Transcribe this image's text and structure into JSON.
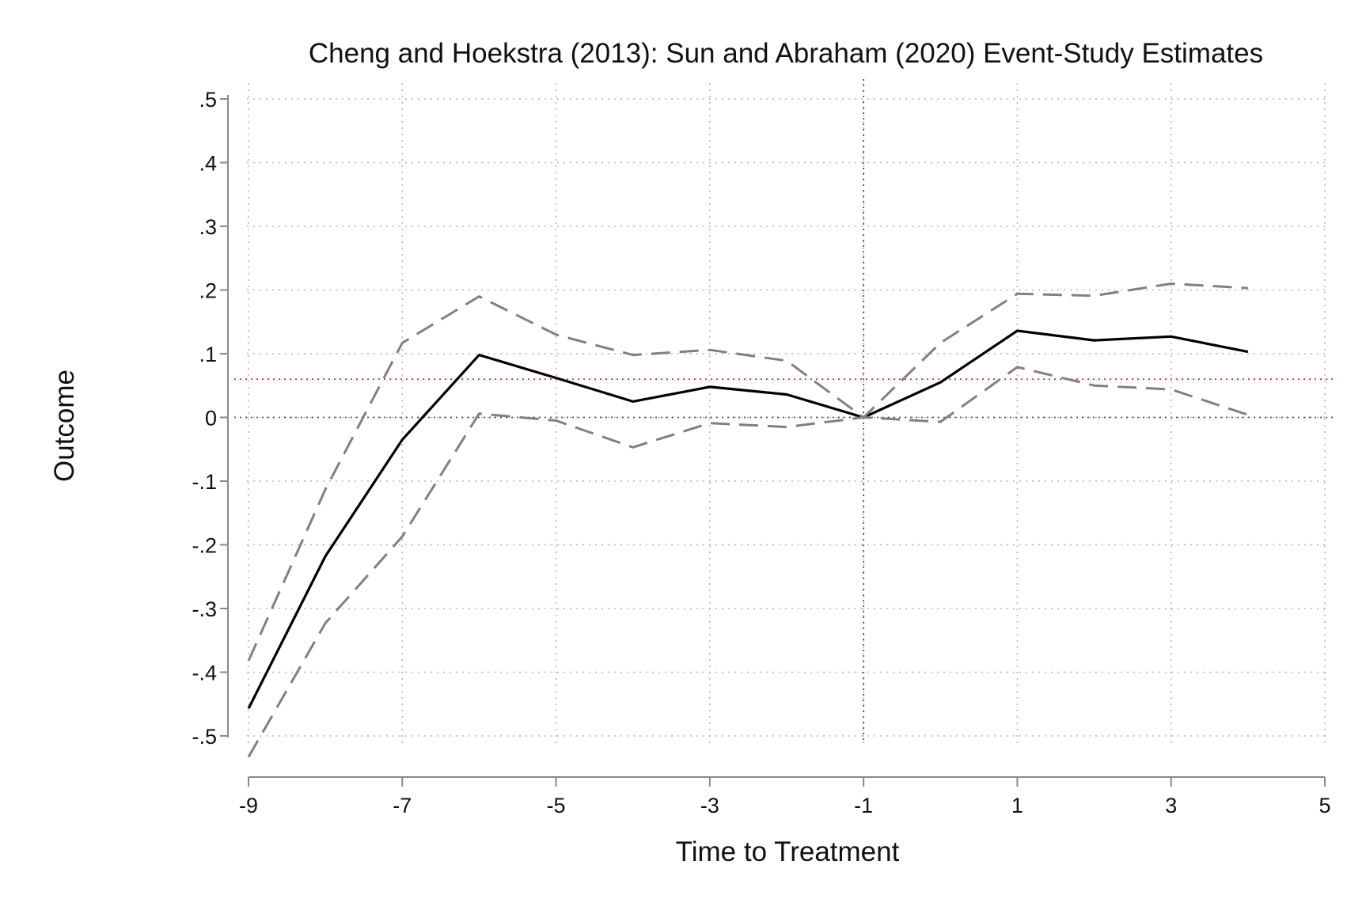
{
  "chart_data": {
    "type": "line",
    "title": "Cheng and Hoekstra (2013): Sun and Abraham (2020) Event-Study Estimates",
    "xlabel": "Time to Treatment",
    "ylabel": "Outcome",
    "xlim": [
      -9,
      5
    ],
    "ylim": [
      -0.5,
      0.5
    ],
    "xticks": [
      -9,
      -7,
      -5,
      -3,
      -1,
      1,
      3,
      5
    ],
    "xtick_labels": [
      "-9",
      "-7",
      "-5",
      "-3",
      "-1",
      "1",
      "3",
      "5"
    ],
    "yticks": [
      0.5,
      0.4,
      0.3,
      0.2,
      0.1,
      0,
      -0.1,
      -0.2,
      -0.3,
      -0.4,
      -0.5
    ],
    "ytick_labels": [
      ".5",
      ".4",
      ".3",
      ".2",
      ".1",
      "0",
      "-.1",
      "-.2",
      "-.3",
      "-.4",
      "-.5"
    ],
    "grid": true,
    "x": [
      -9,
      -8,
      -7,
      -6,
      -5,
      -4,
      -3,
      -2,
      -1,
      0,
      1,
      2,
      3,
      4
    ],
    "series": [
      {
        "role": "estimate",
        "style": "solid",
        "color": "#000000",
        "values": [
          -0.457,
          -0.218,
          -0.035,
          0.098,
          0.062,
          0.025,
          0.048,
          0.036,
          0.0,
          0.055,
          0.136,
          0.121,
          0.127,
          0.103
        ]
      },
      {
        "role": "upper-ci",
        "style": "dashed",
        "color": "#808080",
        "values": [
          -0.382,
          -0.113,
          0.117,
          0.19,
          0.13,
          0.098,
          0.106,
          0.089,
          0.0,
          0.117,
          0.194,
          0.191,
          0.21,
          0.203
        ]
      },
      {
        "role": "lower-ci",
        "style": "dashed",
        "color": "#808080",
        "values": [
          -0.533,
          -0.323,
          -0.187,
          0.006,
          -0.005,
          -0.047,
          -0.009,
          -0.015,
          0.0,
          -0.007,
          0.079,
          0.05,
          0.044,
          0.004
        ]
      }
    ],
    "reference_lines": [
      {
        "axis": "y",
        "value": 0,
        "style": "dotted",
        "color": "#555555"
      },
      {
        "axis": "x",
        "value": -1,
        "style": "dotted",
        "color": "#555555"
      },
      {
        "axis": "y",
        "value": 0.06,
        "style": "dotted",
        "color": "#e03030"
      }
    ]
  }
}
